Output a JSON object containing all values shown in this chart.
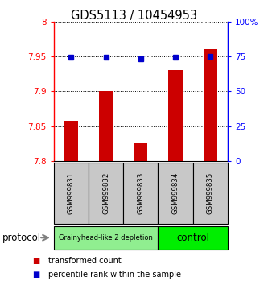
{
  "title": "GDS5113 / 10454953",
  "samples": [
    "GSM999831",
    "GSM999832",
    "GSM999833",
    "GSM999834",
    "GSM999835"
  ],
  "red_values": [
    7.858,
    7.9,
    7.825,
    7.93,
    7.96
  ],
  "blue_values": [
    74.5,
    74.5,
    73.5,
    74.5,
    75.0
  ],
  "ylim_left": [
    7.8,
    8.0
  ],
  "ylim_right": [
    0,
    100
  ],
  "yticks_left": [
    7.8,
    7.85,
    7.9,
    7.95,
    8.0
  ],
  "yticks_right": [
    0,
    25,
    50,
    75,
    100
  ],
  "ytick_labels_left": [
    "7.8",
    "7.85",
    "7.9",
    "7.95",
    "8"
  ],
  "ytick_labels_right": [
    "0",
    "25",
    "50",
    "75",
    "100%"
  ],
  "groups": [
    {
      "label": "Grainyhead-like 2 depletion",
      "samples": [
        0,
        1,
        2
      ],
      "color": "#90EE90"
    },
    {
      "label": "control",
      "samples": [
        3,
        4
      ],
      "color": "#00EE00"
    }
  ],
  "bar_color": "#CC0000",
  "square_color": "#0000CC",
  "protocol_label": "protocol",
  "legend_red": "transformed count",
  "legend_blue": "percentile rank within the sample",
  "sample_box_color": "#C8C8C8",
  "arrow_color": "#808080"
}
